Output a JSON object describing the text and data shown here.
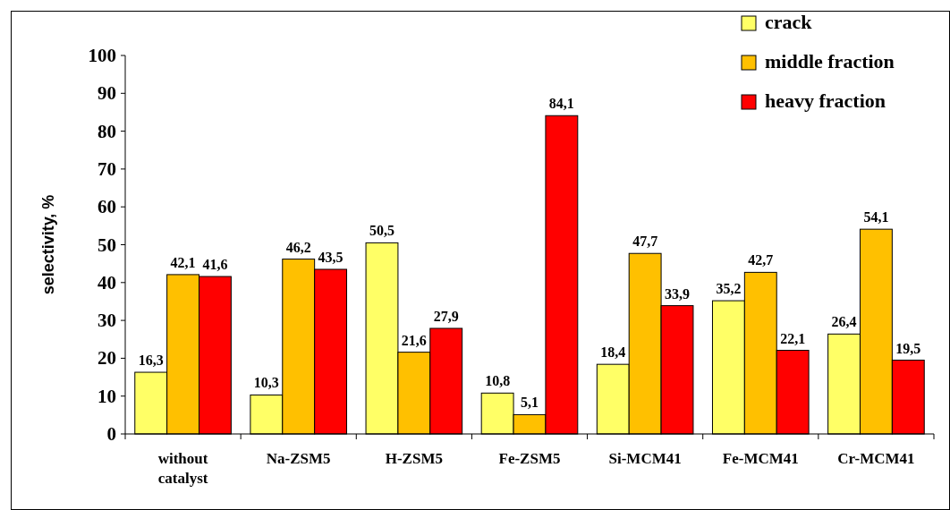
{
  "chart_data": {
    "type": "bar",
    "ylabel": "selectivity, %",
    "categories": [
      "without catalyst",
      "Na-ZSM5",
      "H-ZSM5",
      "Fe-ZSM5",
      "Si-MCM41",
      "Fe-MCM41",
      "Cr-MCM41"
    ],
    "series": [
      {
        "name": "crack",
        "color": "#ffff66",
        "values": [
          16.3,
          10.3,
          50.5,
          10.8,
          18.4,
          35.2,
          26.4
        ],
        "value_labels": [
          "16,3",
          "10,3",
          "50,5",
          "10,8",
          "18,4",
          "35,2",
          "26,4"
        ]
      },
      {
        "name": "middle fraction",
        "color": "#ffc000",
        "values": [
          42.1,
          46.2,
          21.6,
          5.1,
          47.7,
          42.7,
          54.1
        ],
        "value_labels": [
          "42,1",
          "46,2",
          "21,6",
          "5,1",
          "47,7",
          "42,7",
          "54,1"
        ]
      },
      {
        "name": "heavy fraction",
        "color": "#ff0000",
        "values": [
          41.6,
          43.5,
          27.9,
          84.1,
          33.9,
          22.1,
          19.5
        ],
        "value_labels": [
          "41,6",
          "43,5",
          "27,9",
          "84,1",
          "33,9",
          "22,1",
          "19,5"
        ]
      }
    ],
    "ylim": [
      0,
      100
    ],
    "yticks": [
      0,
      10,
      20,
      30,
      40,
      50,
      60,
      70,
      80,
      90,
      100
    ],
    "grid": false,
    "legend": "top right"
  }
}
